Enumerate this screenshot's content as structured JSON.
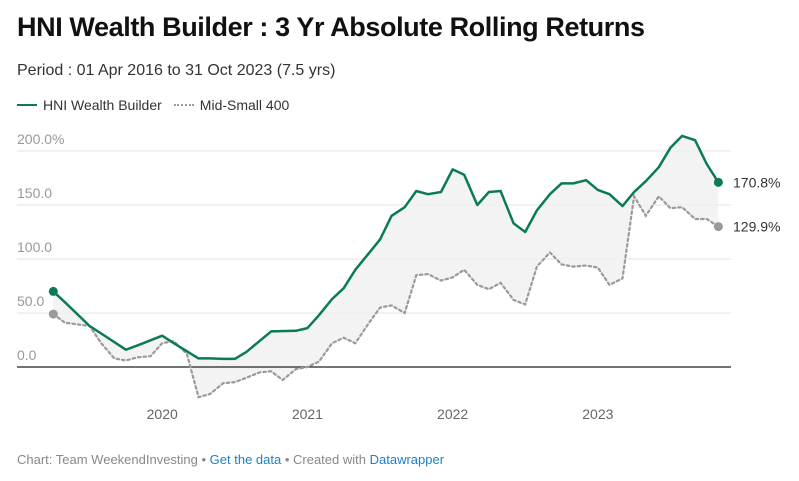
{
  "header": {
    "title": "HNI Wealth Builder : 3 Yr Absolute Rolling Returns",
    "subtitle": "Period : 01 Apr 2016 to 31 Oct 2023 (7.5 yrs)"
  },
  "legend": {
    "items": [
      {
        "label": "HNI Wealth Builder",
        "color": "#0b7a5a",
        "style": "solid"
      },
      {
        "label": "Mid-Small 400",
        "color": "#9a9a9a",
        "style": "dotted"
      }
    ]
  },
  "footer": {
    "prefix": "Chart: Team WeekendInvesting • ",
    "get_data": "Get the data",
    "middle": " • Created with ",
    "datawrapper": "Datawrapper"
  },
  "chart_data": {
    "type": "line",
    "title": "HNI Wealth Builder : 3 Yr Absolute Rolling Returns",
    "subtitle": "Period : 01 Apr 2016 to 31 Oct 2023 (7.5 yrs)",
    "xlabel": "",
    "ylabel": "",
    "x_ticks": [
      "2020",
      "2021",
      "2022",
      "2023"
    ],
    "y_ticks": [
      "0.0",
      "50.0",
      "100.0",
      "150.0",
      "200.0%"
    ],
    "ylim": [
      -30,
      215
    ],
    "grid": true,
    "legend_position": "top-left",
    "end_labels": [
      "170.8%",
      "129.9%"
    ],
    "series": [
      {
        "name": "HNI Wealth Builder",
        "color": "#0b7a5a",
        "points": [
          [
            2019.25,
            70
          ],
          [
            2019.33,
            60
          ],
          [
            2019.5,
            38
          ],
          [
            2019.58,
            31
          ],
          [
            2019.75,
            16
          ],
          [
            2019.83,
            20
          ],
          [
            2020.0,
            29
          ],
          [
            2020.08,
            22
          ],
          [
            2020.25,
            8
          ],
          [
            2020.33,
            8
          ],
          [
            2020.42,
            7.5
          ],
          [
            2020.5,
            7.5
          ],
          [
            2020.58,
            14
          ],
          [
            2020.75,
            33
          ],
          [
            2020.92,
            33.5
          ],
          [
            2021.0,
            36
          ],
          [
            2021.08,
            48
          ],
          [
            2021.17,
            63
          ],
          [
            2021.25,
            73
          ],
          [
            2021.33,
            90
          ],
          [
            2021.5,
            118
          ],
          [
            2021.58,
            140
          ],
          [
            2021.67,
            148
          ],
          [
            2021.75,
            163
          ],
          [
            2021.83,
            160
          ],
          [
            2021.92,
            162
          ],
          [
            2022.0,
            183
          ],
          [
            2022.08,
            178
          ],
          [
            2022.17,
            150
          ],
          [
            2022.25,
            162
          ],
          [
            2022.33,
            163
          ],
          [
            2022.42,
            133
          ],
          [
            2022.5,
            125
          ],
          [
            2022.58,
            145
          ],
          [
            2022.67,
            160
          ],
          [
            2022.75,
            170
          ],
          [
            2022.83,
            170
          ],
          [
            2022.92,
            173
          ],
          [
            2023.0,
            164
          ],
          [
            2023.08,
            160
          ],
          [
            2023.17,
            149
          ],
          [
            2023.25,
            162
          ],
          [
            2023.33,
            172
          ],
          [
            2023.42,
            185
          ],
          [
            2023.5,
            203
          ],
          [
            2023.58,
            214
          ],
          [
            2023.67,
            210
          ],
          [
            2023.75,
            188
          ],
          [
            2023.83,
            171
          ]
        ],
        "end_value": 170.8
      },
      {
        "name": "Mid-Small 400",
        "color": "#9a9a9a",
        "points": [
          [
            2019.25,
            49
          ],
          [
            2019.33,
            41
          ],
          [
            2019.5,
            38
          ],
          [
            2019.58,
            22
          ],
          [
            2019.67,
            8
          ],
          [
            2019.75,
            6
          ],
          [
            2019.83,
            9
          ],
          [
            2019.92,
            10
          ],
          [
            2020.0,
            22
          ],
          [
            2020.08,
            24
          ],
          [
            2020.17,
            12
          ],
          [
            2020.25,
            -28
          ],
          [
            2020.33,
            -25
          ],
          [
            2020.42,
            -15
          ],
          [
            2020.5,
            -14
          ],
          [
            2020.58,
            -10
          ],
          [
            2020.67,
            -5
          ],
          [
            2020.75,
            -4
          ],
          [
            2020.83,
            -12
          ],
          [
            2020.92,
            -2
          ],
          [
            2021.0,
            0
          ],
          [
            2021.08,
            5
          ],
          [
            2021.17,
            22
          ],
          [
            2021.25,
            27
          ],
          [
            2021.33,
            22
          ],
          [
            2021.42,
            40
          ],
          [
            2021.5,
            55
          ],
          [
            2021.58,
            57
          ],
          [
            2021.67,
            50
          ],
          [
            2021.75,
            85
          ],
          [
            2021.83,
            86
          ],
          [
            2021.92,
            80
          ],
          [
            2022.0,
            83
          ],
          [
            2022.08,
            90
          ],
          [
            2022.17,
            76
          ],
          [
            2022.25,
            72
          ],
          [
            2022.33,
            78
          ],
          [
            2022.42,
            62
          ],
          [
            2022.5,
            58
          ],
          [
            2022.58,
            93
          ],
          [
            2022.67,
            106
          ],
          [
            2022.75,
            95
          ],
          [
            2022.83,
            93
          ],
          [
            2022.92,
            94
          ],
          [
            2023.0,
            92
          ],
          [
            2023.08,
            76
          ],
          [
            2023.17,
            82
          ],
          [
            2023.25,
            158
          ],
          [
            2023.33,
            140
          ],
          [
            2023.42,
            158
          ],
          [
            2023.5,
            147
          ],
          [
            2023.58,
            148
          ],
          [
            2023.67,
            137
          ],
          [
            2023.75,
            137
          ],
          [
            2023.83,
            130
          ]
        ],
        "end_value": 129.9
      }
    ]
  }
}
